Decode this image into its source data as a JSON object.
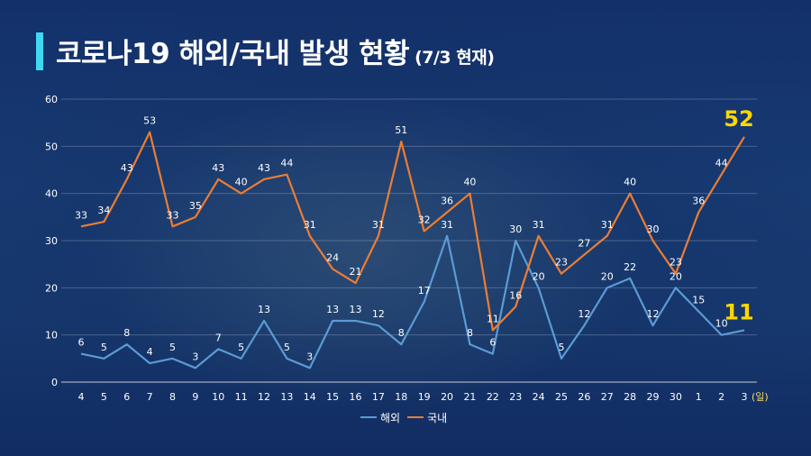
{
  "header": {
    "title": "코로나19 해외/국내 발생 현황",
    "subtitle": "(7/3 현재)"
  },
  "colors": {
    "overseas": "#5b9bd5",
    "domestic": "#ed7d31",
    "highlight": "#ffd700",
    "accent": "#3fd8f0"
  },
  "chart_data": {
    "type": "line",
    "title": "코로나19 해외/국내 발생 현황",
    "categories": [
      "4",
      "5",
      "6",
      "7",
      "8",
      "9",
      "10",
      "11",
      "12",
      "13",
      "14",
      "15",
      "16",
      "17",
      "18",
      "19",
      "20",
      "21",
      "22",
      "23",
      "24",
      "25",
      "26",
      "27",
      "28",
      "29",
      "30",
      "1",
      "2",
      "3"
    ],
    "x_unit_label": "(일)",
    "ylim": [
      0,
      60
    ],
    "yticks": [
      0,
      10,
      20,
      30,
      40,
      50,
      60
    ],
    "grid": true,
    "legend_position": "bottom-center",
    "series": [
      {
        "name": "해외",
        "color": "#5b9bd5",
        "values": [
          6,
          5,
          8,
          4,
          5,
          3,
          7,
          5,
          13,
          5,
          3,
          13,
          13,
          12,
          8,
          17,
          31,
          8,
          6,
          30,
          20,
          5,
          12,
          20,
          22,
          12,
          20,
          15,
          10,
          11
        ]
      },
      {
        "name": "국내",
        "color": "#ed7d31",
        "values": [
          33,
          34,
          43,
          53,
          33,
          35,
          43,
          40,
          43,
          44,
          31,
          24,
          21,
          31,
          51,
          32,
          36,
          40,
          11,
          16,
          31,
          23,
          27,
          31,
          40,
          30,
          23,
          36,
          44,
          52
        ]
      }
    ]
  }
}
